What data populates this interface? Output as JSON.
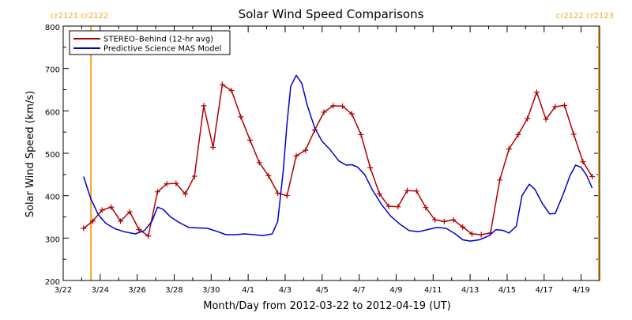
{
  "chart_data": {
    "type": "line",
    "title": "Solar Wind Speed Comparisons",
    "xlabel": "Month/Day from 2012-03-22 to 2012-04-19 (UT)",
    "ylabel": "Solar Wind Speed (km/s)",
    "xlim": [
      "2012-03-22",
      "2012-04-20"
    ],
    "ylim": [
      200,
      800
    ],
    "y_ticks": [
      200,
      300,
      400,
      500,
      600,
      700,
      800
    ],
    "y_tick_labels": [
      "200",
      "300",
      "400",
      "500",
      "600",
      "700",
      "800"
    ],
    "x_ticks": [
      "2012-03-22",
      "2012-03-24",
      "2012-03-26",
      "2012-03-28",
      "2012-03-30",
      "2012-04-01",
      "2012-04-03",
      "2012-04-05",
      "2012-04-07",
      "2012-04-09",
      "2012-04-11",
      "2012-04-13",
      "2012-04-15",
      "2012-04-17",
      "2012-04-19"
    ],
    "x_tick_labels": [
      "3/22",
      "3/24",
      "3/26",
      "3/28",
      "3/30",
      "4/1",
      "4/3",
      "4/5",
      "4/7",
      "4/9",
      "4/11",
      "4/13",
      "4/15",
      "4/17",
      "4/19"
    ],
    "grid": false,
    "legend_position": "top-left",
    "colors": {
      "stereo": "#b00000",
      "model": "#0000cc",
      "rotation": "#f5a623"
    },
    "carrington_markers": [
      {
        "date": "2012-03-23.5",
        "label": "cr2121 cr2122",
        "label_anchor": "left"
      },
      {
        "date": "2012-04-20",
        "label": "cr2122 cr2123",
        "label_anchor": "right"
      }
    ],
    "series": [
      {
        "name": "STEREO–Behind (12-hr avg)",
        "color": "#b00000",
        "marker": "plus",
        "points": [
          [
            "2012-03-23.1",
            323
          ],
          [
            "2012-03-23.6",
            340
          ],
          [
            "2012-03-24.1",
            366
          ],
          [
            "2012-03-24.6",
            373
          ],
          [
            "2012-03-25.1",
            340
          ],
          [
            "2012-03-25.6",
            362
          ],
          [
            "2012-03-26.1",
            320
          ],
          [
            "2012-03-26.6",
            305
          ],
          [
            "2012-03-27.1",
            409
          ],
          [
            "2012-03-27.6",
            428
          ],
          [
            "2012-03-28.1",
            429
          ],
          [
            "2012-03-28.6",
            404
          ],
          [
            "2012-03-29.1",
            446
          ],
          [
            "2012-03-29.6",
            612
          ],
          [
            "2012-03-30.1",
            514
          ],
          [
            "2012-03-30.6",
            662
          ],
          [
            "2012-03-31.1",
            648
          ],
          [
            "2012-03-31.6",
            586
          ],
          [
            "2012-04-01.1",
            531
          ],
          [
            "2012-04-01.6",
            478
          ],
          [
            "2012-04-02.1",
            447
          ],
          [
            "2012-04-02.6",
            406
          ],
          [
            "2012-04-03.1",
            400
          ],
          [
            "2012-04-03.6",
            494
          ],
          [
            "2012-04-04.1",
            507
          ],
          [
            "2012-04-04.6",
            555
          ],
          [
            "2012-04-05.1",
            597
          ],
          [
            "2012-04-05.6",
            612
          ],
          [
            "2012-04-06.1",
            611
          ],
          [
            "2012-04-06.6",
            593
          ],
          [
            "2012-04-07.1",
            544
          ],
          [
            "2012-04-07.6",
            466
          ],
          [
            "2012-04-08.1",
            404
          ],
          [
            "2012-04-08.6",
            375
          ],
          [
            "2012-04-09.1",
            374
          ],
          [
            "2012-04-09.6",
            412
          ],
          [
            "2012-04-10.1",
            411
          ],
          [
            "2012-04-10.6",
            372
          ],
          [
            "2012-04-11.1",
            343
          ],
          [
            "2012-04-11.6",
            339
          ],
          [
            "2012-04-12.1",
            343
          ],
          [
            "2012-04-12.6",
            326
          ],
          [
            "2012-04-13.1",
            310
          ],
          [
            "2012-04-13.6",
            308
          ],
          [
            "2012-04-14.1",
            312
          ],
          [
            "2012-04-14.6",
            437
          ],
          [
            "2012-04-15.1",
            510
          ],
          [
            "2012-04-15.6",
            544
          ],
          [
            "2012-04-16.1",
            582
          ],
          [
            "2012-04-16.6",
            644
          ],
          [
            "2012-04-17.1",
            580
          ],
          [
            "2012-04-17.6",
            610
          ],
          [
            "2012-04-18.1",
            613
          ],
          [
            "2012-04-18.6",
            545
          ],
          [
            "2012-04-19.1",
            480
          ],
          [
            "2012-04-19.6",
            445
          ]
        ]
      },
      {
        "name": "Predictive Science MAS Model",
        "color": "#0000cc",
        "marker": "none",
        "points": [
          [
            "2012-03-23.1",
            445
          ],
          [
            "2012-03-23.5",
            392
          ],
          [
            "2012-03-23.9",
            355
          ],
          [
            "2012-03-24.3",
            335
          ],
          [
            "2012-03-24.8",
            322
          ],
          [
            "2012-03-25.3",
            315
          ],
          [
            "2012-03-25.9",
            310
          ],
          [
            "2012-03-26.4",
            318
          ],
          [
            "2012-03-26.8",
            340
          ],
          [
            "2012-03-27.1",
            373
          ],
          [
            "2012-03-27.4",
            368
          ],
          [
            "2012-03-27.8",
            350
          ],
          [
            "2012-03-28.3",
            336
          ],
          [
            "2012-03-28.8",
            325
          ],
          [
            "2012-03-29.3",
            324
          ],
          [
            "2012-03-29.8",
            323
          ],
          [
            "2012-03-30.3",
            316
          ],
          [
            "2012-03-30.8",
            308
          ],
          [
            "2012-03-31.3",
            308
          ],
          [
            "2012-03-31.8",
            310
          ],
          [
            "2012-04-01.3",
            308
          ],
          [
            "2012-04-01.8",
            306
          ],
          [
            "2012-04-02.3",
            310
          ],
          [
            "2012-04-02.6",
            340
          ],
          [
            "2012-04-02.9",
            460
          ],
          [
            "2012-04-03.1",
            570
          ],
          [
            "2012-04-03.3",
            658
          ],
          [
            "2012-04-03.6",
            684
          ],
          [
            "2012-04-03.9",
            665
          ],
          [
            "2012-04-04.2",
            612
          ],
          [
            "2012-04-04.6",
            560
          ],
          [
            "2012-04-05.0",
            528
          ],
          [
            "2012-04-05.4",
            510
          ],
          [
            "2012-04-05.9",
            482
          ],
          [
            "2012-04-06.3",
            472
          ],
          [
            "2012-04-06.6",
            473
          ],
          [
            "2012-04-06.9",
            468
          ],
          [
            "2012-04-07.3",
            450
          ],
          [
            "2012-04-07.7",
            415
          ],
          [
            "2012-04-08.2",
            380
          ],
          [
            "2012-04-08.7",
            352
          ],
          [
            "2012-04-09.2",
            333
          ],
          [
            "2012-04-09.7",
            318
          ],
          [
            "2012-04-10.2",
            315
          ],
          [
            "2012-04-10.7",
            320
          ],
          [
            "2012-04-11.2",
            325
          ],
          [
            "2012-04-11.7",
            323
          ],
          [
            "2012-04-12.2",
            310
          ],
          [
            "2012-04-12.6",
            296
          ],
          [
            "2012-04-13.0",
            293
          ],
          [
            "2012-04-13.5",
            296
          ],
          [
            "2012-04-14.0",
            305
          ],
          [
            "2012-04-14.4",
            320
          ],
          [
            "2012-04-14.8",
            318
          ],
          [
            "2012-04-15.1",
            312
          ],
          [
            "2012-04-15.5",
            328
          ],
          [
            "2012-04-15.8",
            400
          ],
          [
            "2012-04-16.2",
            427
          ],
          [
            "2012-04-16.5",
            415
          ],
          [
            "2012-04-16.9",
            382
          ],
          [
            "2012-04-17.3",
            357
          ],
          [
            "2012-04-17.6",
            358
          ],
          [
            "2012-04-18.0",
            400
          ],
          [
            "2012-04-18.4",
            447
          ],
          [
            "2012-04-18.7",
            472
          ],
          [
            "2012-04-19.0",
            467
          ],
          [
            "2012-04-19.3",
            448
          ],
          [
            "2012-04-19.6",
            418
          ]
        ]
      }
    ]
  }
}
